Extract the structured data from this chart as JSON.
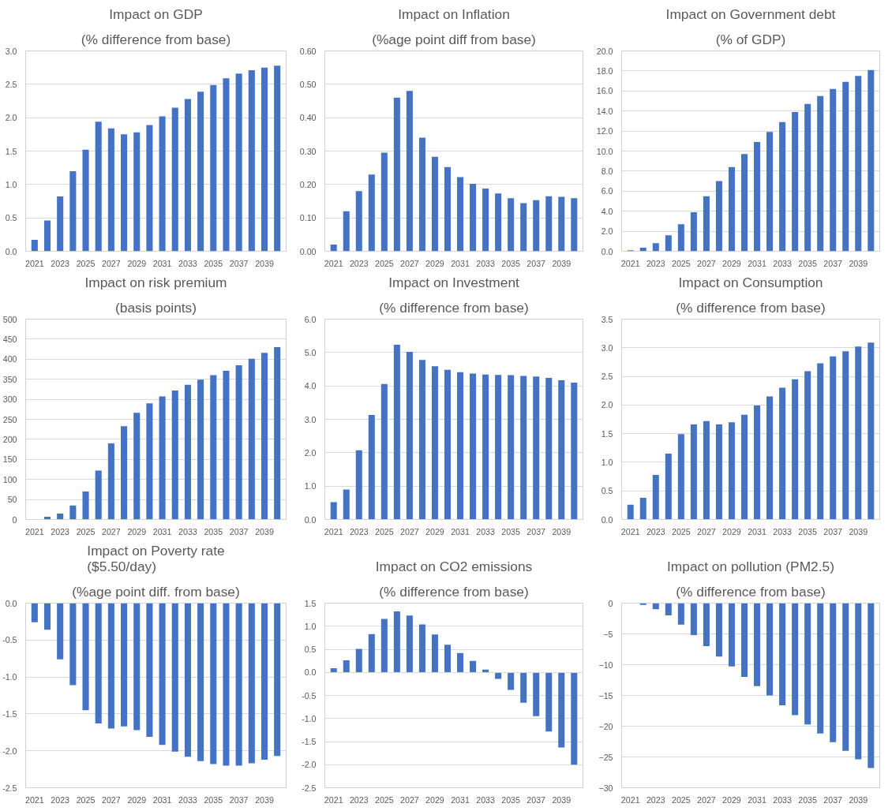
{
  "chart_data": [
    {
      "type": "bar",
      "title": "Impact on GDP",
      "subtitle": "(% difference from base)",
      "categories": [
        "2021",
        null,
        "2023",
        null,
        "2025",
        null,
        "2027",
        null,
        "2029",
        null,
        "2031",
        null,
        "2033",
        null,
        "2035",
        null,
        "2037",
        null,
        "2039",
        null
      ],
      "values": [
        0.17,
        0.46,
        0.82,
        1.2,
        1.52,
        1.94,
        1.84,
        1.75,
        1.78,
        1.89,
        2.02,
        2.15,
        2.28,
        2.39,
        2.49,
        2.59,
        2.66,
        2.71,
        2.75,
        2.78
      ],
      "color": "#4472c4",
      "ylim": [
        0,
        3
      ],
      "yticks": [
        {
          "value": 0,
          "label": "0.0"
        },
        {
          "value": 0.5,
          "label": "0.5"
        },
        {
          "value": 1,
          "label": "1.0"
        },
        {
          "value": 1.5,
          "label": "1.5"
        },
        {
          "value": 2,
          "label": "2.0"
        },
        {
          "value": 2.5,
          "label": "2.5"
        },
        {
          "value": 3,
          "label": "3.0"
        }
      ],
      "grid": "y"
    },
    {
      "type": "bar",
      "title": "Impact on Inflation",
      "subtitle": "(%age point diff from base)",
      "categories": [
        "2021",
        null,
        "2023",
        null,
        "2025",
        null,
        "2027",
        null,
        "2029",
        null,
        "2031",
        null,
        "2033",
        null,
        "2035",
        null,
        "2037",
        null,
        "2039",
        null
      ],
      "values": [
        0.02,
        0.12,
        0.18,
        0.23,
        0.295,
        0.46,
        0.48,
        0.34,
        0.283,
        0.252,
        0.222,
        0.202,
        0.188,
        0.173,
        0.159,
        0.144,
        0.153,
        0.165,
        0.163,
        0.159
      ],
      "color": "#4472c4",
      "ylim": [
        0,
        0.6
      ],
      "yticks": [
        {
          "value": 0,
          "label": "0.00"
        },
        {
          "value": 0.1,
          "label": "0.10"
        },
        {
          "value": 0.2,
          "label": "0.20"
        },
        {
          "value": 0.3,
          "label": "0.30"
        },
        {
          "value": 0.4,
          "label": "0.40"
        },
        {
          "value": 0.5,
          "label": "0.50"
        },
        {
          "value": 0.6,
          "label": "0.60"
        }
      ],
      "grid": "y"
    },
    {
      "type": "bar",
      "title": "Impact on Government debt",
      "subtitle": "(% of GDP)",
      "categories": [
        "2021",
        null,
        "2023",
        null,
        "2025",
        null,
        "2027",
        null,
        "2029",
        null,
        "2031",
        null,
        "2033",
        null,
        "2035",
        null,
        "2037",
        null,
        "2039",
        null
      ],
      "values": [
        0.1,
        0.35,
        0.8,
        1.6,
        2.7,
        3.9,
        5.5,
        7.0,
        8.4,
        9.7,
        10.9,
        11.9,
        12.9,
        13.9,
        14.7,
        15.5,
        16.2,
        16.9,
        17.5,
        18.1
      ],
      "color": "#4472c4",
      "ylim": [
        0,
        20
      ],
      "yticks": [
        {
          "value": 0,
          "label": "0.0"
        },
        {
          "value": 2,
          "label": "2.0"
        },
        {
          "value": 4,
          "label": "4.0"
        },
        {
          "value": 6,
          "label": "6.0"
        },
        {
          "value": 8,
          "label": "8.0"
        },
        {
          "value": 10,
          "label": "10.0"
        },
        {
          "value": 12,
          "label": "12.0"
        },
        {
          "value": 14,
          "label": "14.0"
        },
        {
          "value": 16,
          "label": "16.0"
        },
        {
          "value": 18,
          "label": "18.0"
        },
        {
          "value": 20,
          "label": "20.0"
        }
      ],
      "grid": "y"
    },
    {
      "type": "bar",
      "title": "Impact on risk premium",
      "subtitle": "(basis points)",
      "categories": [
        "2021",
        null,
        "2023",
        null,
        "2025",
        null,
        "2027",
        null,
        "2029",
        null,
        "2031",
        null,
        "2033",
        null,
        "2035",
        null,
        "2037",
        null,
        "2039",
        null
      ],
      "values": [
        null,
        7,
        15,
        35,
        70,
        122,
        190,
        233,
        266,
        290,
        307,
        322,
        336,
        349,
        360,
        371,
        385,
        401,
        416,
        430
      ],
      "color": "#4472c4",
      "ylim": [
        0,
        500
      ],
      "yticks": [
        0,
        50,
        100,
        150,
        200,
        250,
        300,
        350,
        400,
        450,
        500
      ],
      "grid": "y"
    },
    {
      "type": "bar",
      "title": "Impact on Investment",
      "subtitle": "(% difference from base)",
      "categories": [
        "2021",
        null,
        "2023",
        null,
        "2025",
        null,
        "2027",
        null,
        "2029",
        null,
        "2031",
        null,
        "2033",
        null,
        "2035",
        null,
        "2037",
        null,
        "2039",
        null
      ],
      "values": [
        0.52,
        0.9,
        2.07,
        3.13,
        4.06,
        5.23,
        5.02,
        4.78,
        4.59,
        4.48,
        4.41,
        4.37,
        4.34,
        4.33,
        4.32,
        4.3,
        4.28,
        4.24,
        4.17,
        4.1
      ],
      "color": "#4472c4",
      "ylim": [
        0,
        6
      ],
      "yticks": [
        {
          "value": 0,
          "label": "0.0"
        },
        {
          "value": 1,
          "label": "1.0"
        },
        {
          "value": 2,
          "label": "2.0"
        },
        {
          "value": 3,
          "label": "3.0"
        },
        {
          "value": 4,
          "label": "4.0"
        },
        {
          "value": 5,
          "label": "5.0"
        },
        {
          "value": 6,
          "label": "6.0"
        }
      ],
      "grid": "y"
    },
    {
      "type": "bar",
      "title": "Impact on Consumption",
      "subtitle": "(% difference from base)",
      "categories": [
        "2021",
        null,
        "2023",
        null,
        "2025",
        null,
        "2027",
        null,
        "2029",
        null,
        "2031",
        null,
        "2033",
        null,
        "2035",
        null,
        "2037",
        null,
        "2039",
        null
      ],
      "values": [
        0.26,
        0.38,
        0.78,
        1.15,
        1.49,
        1.66,
        1.72,
        1.66,
        1.7,
        1.83,
        1.99,
        2.15,
        2.3,
        2.45,
        2.59,
        2.73,
        2.85,
        2.94,
        3.02,
        3.09
      ],
      "color": "#4472c4",
      "ylim": [
        0,
        3.5
      ],
      "yticks": [
        {
          "value": 0,
          "label": "0.0"
        },
        {
          "value": 0.5,
          "label": "0.5"
        },
        {
          "value": 1,
          "label": "1.0"
        },
        {
          "value": 1.5,
          "label": "1.5"
        },
        {
          "value": 2,
          "label": "2.0"
        },
        {
          "value": 2.5,
          "label": "2.5"
        },
        {
          "value": 3,
          "label": "3.0"
        },
        {
          "value": 3.5,
          "label": "3.5"
        }
      ],
      "grid": "y"
    },
    {
      "type": "bar",
      "title": "Impact on Poverty rate\n($5.50/day)",
      "subtitle": "(%age point diff. from base)",
      "categories": [
        "2021",
        null,
        "2023",
        null,
        "2025",
        null,
        "2027",
        null,
        "2029",
        null,
        "2031",
        null,
        "2033",
        null,
        "2035",
        null,
        "2037",
        null,
        "2039",
        null
      ],
      "values": [
        -0.26,
        -0.36,
        -0.76,
        -1.11,
        -1.45,
        -1.63,
        -1.7,
        -1.67,
        -1.72,
        -1.81,
        -1.92,
        -2.01,
        -2.08,
        -2.14,
        -2.18,
        -2.2,
        -2.2,
        -2.17,
        -2.12,
        -2.07
      ],
      "color": "#4472c4",
      "ylim": [
        -2.5,
        0
      ],
      "yticks": [
        {
          "value": -2.5,
          "label": "-2.5"
        },
        {
          "value": -2,
          "label": "-2.0"
        },
        {
          "value": -1.5,
          "label": "-1.5"
        },
        {
          "value": -1,
          "label": "-1.0"
        },
        {
          "value": -0.5,
          "label": "-0.5"
        },
        {
          "value": 0,
          "label": "0.0"
        }
      ],
      "grid": "y"
    },
    {
      "type": "bar",
      "title": "Impact on CO2 emissions",
      "subtitle": "(% difference from base)",
      "categories": [
        "2021",
        null,
        "2023",
        null,
        "2025",
        null,
        "2027",
        null,
        "2029",
        null,
        "2031",
        null,
        "2033",
        null,
        "2035",
        null,
        "2037",
        null,
        "2039",
        null
      ],
      "values": [
        0.09,
        0.26,
        0.51,
        0.83,
        1.16,
        1.32,
        1.23,
        1.04,
        0.82,
        0.6,
        0.42,
        0.25,
        0.06,
        -0.14,
        -0.38,
        -0.66,
        -0.95,
        -1.28,
        -1.63,
        -2.0
      ],
      "color": "#4472c4",
      "ylim": [
        -2.5,
        1.5
      ],
      "yticks": [
        {
          "value": -2.5,
          "label": "-2.5"
        },
        {
          "value": -2,
          "label": "-2.0"
        },
        {
          "value": -1.5,
          "label": "-1.5"
        },
        {
          "value": -1,
          "label": "-1.0"
        },
        {
          "value": -0.5,
          "label": "-0.5"
        },
        {
          "value": 0,
          "label": "0.0"
        },
        {
          "value": 0.5,
          "label": "0.5"
        },
        {
          "value": 1,
          "label": "1.0"
        },
        {
          "value": 1.5,
          "label": "1.5"
        }
      ],
      "grid": "y"
    },
    {
      "type": "bar",
      "title": "Impact on pollution (PM2.5)",
      "subtitle": "(% difference from base)",
      "categories": [
        "2021",
        null,
        "2023",
        null,
        "2025",
        null,
        "2027",
        null,
        "2029",
        null,
        "2031",
        null,
        "2033",
        null,
        "2035",
        null,
        "2037",
        null,
        "2039",
        null
      ],
      "values": [
        0,
        -0.3,
        -1.0,
        -2.0,
        -3.5,
        -5.2,
        -7.0,
        -8.7,
        -10.3,
        -12.0,
        -13.5,
        -15.0,
        -16.6,
        -18.2,
        -19.7,
        -21.2,
        -22.6,
        -24.0,
        -25.4,
        -26.8
      ],
      "color": "#4472c4",
      "ylim": [
        -30,
        0
      ],
      "yticks": [
        -30,
        -25,
        -20,
        -15,
        -10,
        -5,
        0
      ],
      "grid": "y"
    }
  ]
}
